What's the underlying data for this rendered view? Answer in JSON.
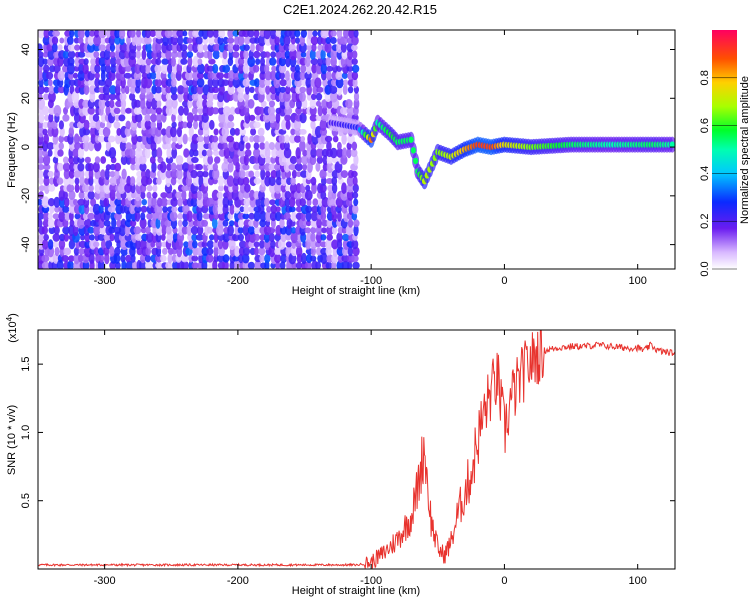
{
  "title": "C2E1.2024.262.20.42.R15",
  "top_panel": {
    "xlabel": "Height of straight line (km)",
    "ylabel": "Frequency (Hz)",
    "xticks": [
      "-300",
      "-200",
      "-100",
      "0",
      "100"
    ],
    "yticks": [
      "40",
      "20",
      "0",
      "-20",
      "-40"
    ],
    "colorbar_label": "Normalized spectral amplitude",
    "colorbar_ticks": [
      "0.0",
      "0.2",
      "0.4",
      "0.6",
      "0.8"
    ]
  },
  "bottom_panel": {
    "xlabel": "Height of straight line (km)",
    "ylabel": "SNR (10 * v/v)",
    "multiplier": "(x10",
    "multiplier_exp": "4",
    "multiplier_close": ")",
    "xticks": [
      "-300",
      "-200",
      "-100",
      "0",
      "100"
    ],
    "yticks": [
      "1.5",
      "1.0",
      "0.5"
    ]
  },
  "colors": {
    "snr_line": "#e8332e",
    "signal": "#5a1fe6"
  },
  "chart_data": [
    {
      "type": "heatmap",
      "title": "C2E1.2024.262.20.42.R15",
      "xlabel": "Height of straight line (km)",
      "ylabel": "Frequency (Hz)",
      "xlim": [
        -350,
        128
      ],
      "ylim": [
        -50,
        48
      ],
      "colorbar": {
        "label": "Normalized spectral amplitude",
        "range": [
          0,
          1
        ]
      },
      "signal_track": [
        {
          "x": -130,
          "y": 10,
          "amp": 0.2
        },
        {
          "x": -110,
          "y": 8,
          "amp": 0.25
        },
        {
          "x": -100,
          "y": 3,
          "amp": 0.85
        },
        {
          "x": -95,
          "y": 10,
          "amp": 0.5
        },
        {
          "x": -85,
          "y": 5,
          "amp": 0.6
        },
        {
          "x": -80,
          "y": 2,
          "amp": 0.55
        },
        {
          "x": -70,
          "y": 3,
          "amp": 0.55
        },
        {
          "x": -65,
          "y": -10,
          "amp": 0.55
        },
        {
          "x": -60,
          "y": -14,
          "amp": 0.7
        },
        {
          "x": -50,
          "y": -2,
          "amp": 0.65
        },
        {
          "x": -40,
          "y": -4,
          "amp": 0.7
        },
        {
          "x": -30,
          "y": -1,
          "amp": 0.8
        },
        {
          "x": -20,
          "y": 1,
          "amp": 0.9
        },
        {
          "x": -10,
          "y": 0,
          "amp": 0.9
        },
        {
          "x": 0,
          "y": 1,
          "amp": 0.75
        },
        {
          "x": 20,
          "y": 0,
          "amp": 0.65
        },
        {
          "x": 50,
          "y": 1,
          "amp": 0.55
        },
        {
          "x": 80,
          "y": 1,
          "amp": 0.5
        },
        {
          "x": 110,
          "y": 1,
          "amp": 0.55
        },
        {
          "x": 128,
          "y": 1,
          "amp": 0.5
        }
      ]
    },
    {
      "type": "line",
      "xlabel": "Height of straight line (km)",
      "ylabel": "SNR (10 * v/v)",
      "y_multiplier": 10000,
      "xlim": [
        -350,
        128
      ],
      "ylim": [
        0,
        1.75
      ],
      "series": [
        {
          "x": [
            -350,
            -300,
            -250,
            -200,
            -150,
            -110,
            -100,
            -90,
            -80,
            -75,
            -70,
            -65,
            -60,
            -57,
            -55,
            -50,
            -45,
            -40,
            -35,
            -30,
            -25,
            -20,
            -15,
            -10,
            -5,
            0,
            5,
            10,
            15,
            20,
            25,
            30,
            40,
            50,
            60,
            70,
            80,
            90,
            100,
            105,
            110,
            115,
            120,
            128
          ],
          "y": [
            0.03,
            0.03,
            0.03,
            0.03,
            0.03,
            0.03,
            0.05,
            0.12,
            0.22,
            0.3,
            0.38,
            0.6,
            0.9,
            0.55,
            0.35,
            0.15,
            0.1,
            0.2,
            0.4,
            0.55,
            0.7,
            0.95,
            1.15,
            1.3,
            1.4,
            1.0,
            1.25,
            1.35,
            1.45,
            1.52,
            1.57,
            1.6,
            1.62,
            1.63,
            1.63,
            1.64,
            1.63,
            1.62,
            1.62,
            1.6,
            1.64,
            1.6,
            1.59,
            1.58
          ]
        }
      ]
    }
  ]
}
